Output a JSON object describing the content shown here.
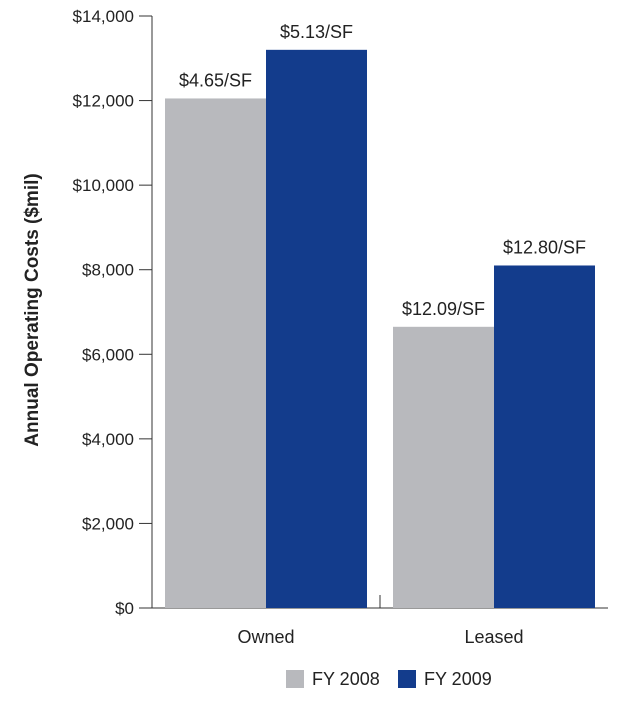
{
  "chart_data": {
    "type": "bar",
    "title": "",
    "xlabel": "",
    "ylabel": "Annual Operating Costs ($mil)",
    "categories": [
      "Owned",
      "Leased"
    ],
    "ylim": [
      0,
      14000
    ],
    "yticks": [
      0,
      2000,
      4000,
      6000,
      8000,
      10000,
      12000,
      14000
    ],
    "ytick_labels": [
      "$0",
      "$2,000",
      "$4,000",
      "$6,000",
      "$8,000",
      "$10,000",
      "$12,000",
      "$14,000"
    ],
    "series": [
      {
        "name": "FY 2008",
        "color": "#b8b9bd",
        "values": [
          12050,
          6650
        ],
        "labels": [
          "$4.65/SF",
          "$12.09/SF"
        ]
      },
      {
        "name": "FY 2009",
        "color": "#133c8c",
        "values": [
          13200,
          8100
        ],
        "labels": [
          "$5.13/SF",
          "$12.80/SF"
        ]
      }
    ],
    "grid": false,
    "legend_position": "bottom-center"
  }
}
